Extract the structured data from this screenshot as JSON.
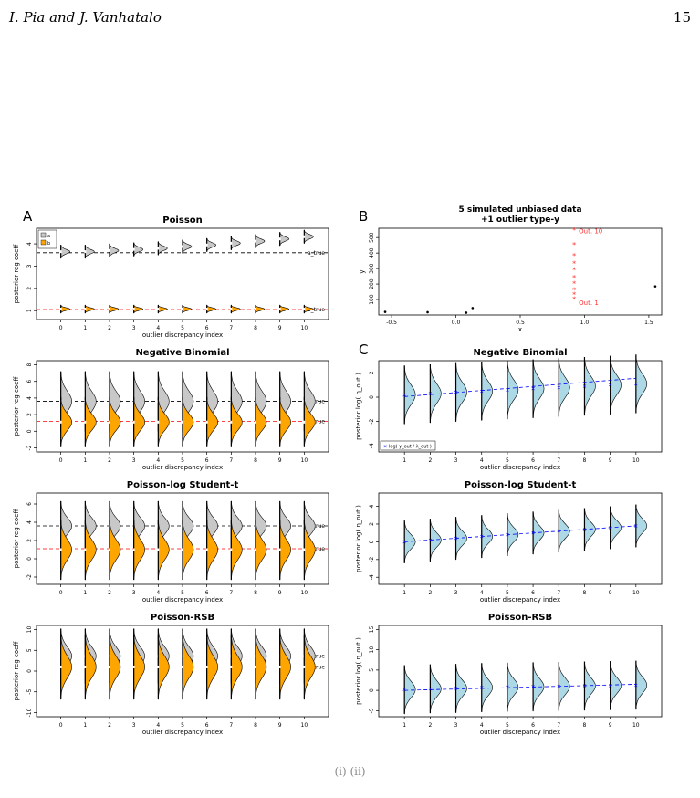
{
  "page": {
    "running_head": "I. Pia and J. Vanhatalo",
    "page_number": "15",
    "caption_fragment": "(i)          (ii)"
  },
  "panels": {
    "A_letter": "A",
    "B_letter": "B",
    "C_letter": "C",
    "left_ylabel": "posterior reg coeff",
    "xlabel": "outlier discrepancy index",
    "legend_a": "a",
    "legend_b": "b",
    "a_true": "a_true",
    "b_true": "b_true",
    "B_title_1": "5 simulated unbiased data",
    "B_title_2": "+1 outlier type-y",
    "B_xlabel": "x",
    "B_ylabel": "y",
    "C_ylabel": "posterior log( η_out )",
    "C_legend": "log( y_out / λ_out )",
    "out_top": "Out. 10",
    "out_bot": "Out. 1"
  },
  "colors": {
    "a_fill": "#c8c8c8",
    "b_fill": "#ffa500",
    "eta_fill": "#add8e6",
    "a_line": "#000000",
    "b_line": "#ff0000",
    "trend": "#0000ff",
    "outlier": "#ff3333"
  },
  "chart_data": [
    {
      "id": "A1",
      "type": "violin",
      "title": "Poisson",
      "x": [
        0,
        1,
        2,
        3,
        4,
        5,
        6,
        7,
        8,
        9,
        10
      ],
      "ylim": [
        0.6,
        4.7
      ],
      "yticks": [
        1,
        2,
        3,
        4
      ],
      "a_true": 3.6,
      "b_true": 1.05,
      "a_centers": [
        3.65,
        3.65,
        3.7,
        3.75,
        3.8,
        3.88,
        3.95,
        4.03,
        4.12,
        4.22,
        4.32
      ],
      "b_centers": [
        1.07,
        1.07,
        1.07,
        1.07,
        1.07,
        1.07,
        1.07,
        1.07,
        1.07,
        1.07,
        1.07
      ],
      "a_sd": 0.1,
      "b_sd": 0.06
    },
    {
      "id": "A2",
      "type": "violin",
      "title": "Negative Binomial",
      "x": [
        0,
        1,
        2,
        3,
        4,
        5,
        6,
        7,
        8,
        9,
        10
      ],
      "ylim": [
        -2.5,
        8.5
      ],
      "yticks": [
        -2,
        0,
        2,
        4,
        6,
        8
      ],
      "a_true": 3.6,
      "b_true": 1.2,
      "a_centers": [
        3.6,
        3.6,
        3.6,
        3.6,
        3.6,
        3.6,
        3.6,
        3.6,
        3.6,
        3.6,
        3.6
      ],
      "b_centers": [
        1.1,
        1.1,
        1.1,
        1.1,
        1.1,
        1.1,
        1.1,
        1.1,
        1.1,
        1.1,
        1.1
      ],
      "a_sd": 1.2,
      "b_sd": 1.0
    },
    {
      "id": "A3",
      "type": "violin",
      "title": "Poisson-log Student-t",
      "x": [
        0,
        1,
        2,
        3,
        4,
        5,
        6,
        7,
        8,
        9,
        10
      ],
      "ylim": [
        -2.8,
        7.2
      ],
      "yticks": [
        -2,
        0,
        2,
        4,
        6
      ],
      "a_true": 3.6,
      "b_true": 1.1,
      "a_centers": [
        3.6,
        3.6,
        3.6,
        3.6,
        3.6,
        3.6,
        3.6,
        3.6,
        3.6,
        3.6,
        3.6
      ],
      "b_centers": [
        1.0,
        1.0,
        1.0,
        1.0,
        1.0,
        1.0,
        1.0,
        1.0,
        1.0,
        1.0,
        1.0
      ],
      "a_sd": 0.9,
      "b_sd": 1.1
    },
    {
      "id": "A4",
      "type": "violin",
      "title": "Poisson-RSB",
      "x": [
        0,
        1,
        2,
        3,
        4,
        5,
        6,
        7,
        8,
        9,
        10
      ],
      "ylim": [
        -11,
        11
      ],
      "yticks": [
        -10,
        -5,
        0,
        5,
        10
      ],
      "a_true": 3.6,
      "b_true": 1.0,
      "a_centers": [
        3.6,
        3.6,
        3.6,
        3.6,
        3.6,
        3.6,
        3.6,
        3.6,
        3.6,
        3.6,
        3.6
      ],
      "b_centers": [
        1.0,
        1.0,
        1.0,
        1.0,
        1.0,
        1.0,
        1.0,
        1.0,
        1.0,
        1.0,
        1.0
      ],
      "a_sd": 2.2,
      "b_sd": 2.6
    },
    {
      "id": "B",
      "type": "scatter",
      "title": "5 simulated unbiased data +1 outlier type-y",
      "xlim": [
        -0.6,
        1.6
      ],
      "ylim": [
        0,
        560
      ],
      "xticks": [
        -0.5,
        0.0,
        0.5,
        1.0,
        1.5
      ],
      "yticks": [
        100,
        200,
        300,
        400,
        500
      ],
      "points": [
        [
          -0.55,
          20
        ],
        [
          -0.22,
          18
        ],
        [
          0.08,
          15
        ],
        [
          0.13,
          45
        ],
        [
          1.55,
          185
        ]
      ],
      "outliers_x": 0.92,
      "outliers_y": [
        100,
        130,
        160,
        200,
        240,
        290,
        330,
        380,
        450,
        545
      ]
    },
    {
      "id": "C1",
      "type": "violin",
      "title": "Negative Binomial",
      "x": [
        1,
        2,
        3,
        4,
        5,
        6,
        7,
        8,
        9,
        10
      ],
      "ylim": [
        -4.5,
        3.0
      ],
      "yticks": [
        -4,
        -2,
        0,
        2
      ],
      "centers": [
        0.2,
        0.3,
        0.4,
        0.5,
        0.6,
        0.7,
        0.8,
        0.9,
        1.0,
        1.1
      ],
      "sd": 0.8,
      "trend": [
        [
          1,
          0.05
        ],
        [
          10,
          1.55
        ]
      ]
    },
    {
      "id": "C2",
      "type": "violin",
      "title": "Poisson-log Student-t",
      "x": [
        1,
        2,
        3,
        4,
        5,
        6,
        7,
        8,
        9,
        10
      ],
      "ylim": [
        -4.8,
        5.5
      ],
      "yticks": [
        -4,
        -2,
        0,
        2,
        4
      ],
      "centers": [
        0.0,
        0.2,
        0.4,
        0.6,
        0.8,
        1.0,
        1.2,
        1.4,
        1.6,
        1.8
      ],
      "sd": 0.8,
      "trend": [
        [
          1,
          0.0
        ],
        [
          10,
          1.8
        ]
      ]
    },
    {
      "id": "C3",
      "type": "violin",
      "title": "Poisson-RSB",
      "x": [
        1,
        2,
        3,
        4,
        5,
        6,
        7,
        8,
        9,
        10
      ],
      "ylim": [
        -6.5,
        16
      ],
      "yticks": [
        -5,
        0,
        5,
        10,
        15
      ],
      "centers": [
        0.2,
        0.4,
        0.5,
        0.7,
        0.8,
        0.9,
        1.0,
        1.1,
        1.2,
        1.3
      ],
      "sd": 2.0,
      "trend": [
        [
          1,
          0.0
        ],
        [
          10,
          1.5
        ]
      ]
    }
  ]
}
